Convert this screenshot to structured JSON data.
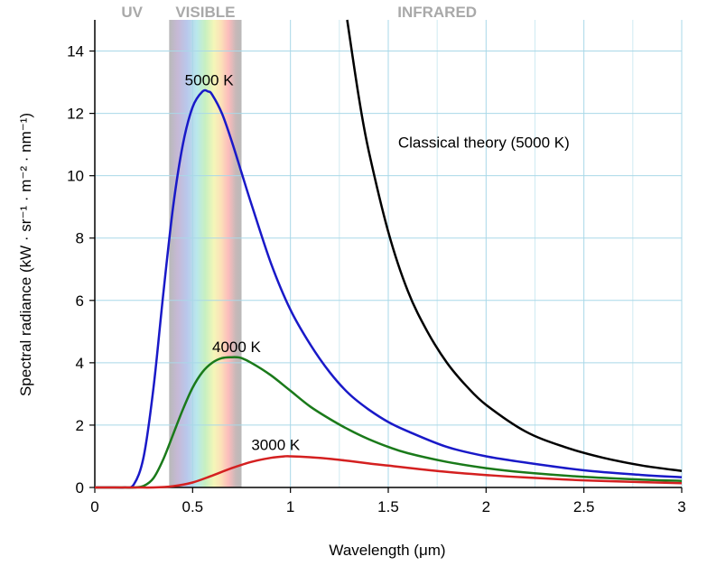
{
  "chart_data": {
    "type": "line",
    "xlabel": "Wavelength (μm)",
    "ylabel": "Spectral radiance (kW · sr⁻¹ · m⁻² · nm⁻¹)",
    "xlim": [
      0,
      3
    ],
    "ylim": [
      0,
      15
    ],
    "x_ticks": [
      "0",
      "0.5",
      "1",
      "1.5",
      "2",
      "2.5",
      "3"
    ],
    "y_ticks": [
      "0",
      "2",
      "4",
      "6",
      "8",
      "10",
      "12",
      "14"
    ],
    "grid": true,
    "regions": [
      {
        "label": "UV",
        "x_range": [
          0,
          0.38
        ]
      },
      {
        "label": "VISIBLE",
        "x_range": [
          0.38,
          0.75
        ]
      },
      {
        "label": "INFRARED",
        "x_range": [
          0.75,
          3
        ]
      }
    ],
    "series": [
      {
        "name": "5000 K",
        "color": "#1919c8",
        "x": [
          0.1,
          0.15,
          0.2,
          0.25,
          0.3,
          0.35,
          0.4,
          0.45,
          0.5,
          0.55,
          0.58,
          0.6,
          0.65,
          0.7,
          0.75,
          0.8,
          0.9,
          1.0,
          1.1,
          1.2,
          1.3,
          1.4,
          1.5,
          1.6,
          1.8,
          2.0,
          2.2,
          2.5,
          2.8,
          3.0
        ],
        "y": [
          0.0,
          0.0,
          0.1,
          1.0,
          3.2,
          6.2,
          9.0,
          11.0,
          12.2,
          12.7,
          12.7,
          12.6,
          12.0,
          11.1,
          10.1,
          9.1,
          7.2,
          5.7,
          4.6,
          3.7,
          3.0,
          2.5,
          2.1,
          1.8,
          1.3,
          1.0,
          0.8,
          0.55,
          0.4,
          0.33
        ]
      },
      {
        "name": "4000 K",
        "color": "#1a7a1a",
        "x": [
          0.15,
          0.2,
          0.25,
          0.3,
          0.35,
          0.4,
          0.45,
          0.5,
          0.55,
          0.6,
          0.65,
          0.7,
          0.725,
          0.75,
          0.8,
          0.9,
          1.0,
          1.1,
          1.2,
          1.3,
          1.4,
          1.5,
          1.6,
          1.8,
          2.0,
          2.2,
          2.5,
          2.8,
          3.0
        ],
        "y": [
          0.0,
          0.0,
          0.05,
          0.3,
          0.9,
          1.7,
          2.5,
          3.2,
          3.7,
          4.0,
          4.15,
          4.18,
          4.18,
          4.15,
          4.0,
          3.6,
          3.1,
          2.6,
          2.2,
          1.85,
          1.55,
          1.3,
          1.1,
          0.82,
          0.62,
          0.48,
          0.34,
          0.25,
          0.21
        ]
      },
      {
        "name": "3000 K",
        "color": "#d42020",
        "x": [
          0.2,
          0.3,
          0.4,
          0.5,
          0.6,
          0.7,
          0.8,
          0.9,
          0.97,
          1.0,
          1.1,
          1.2,
          1.3,
          1.4,
          1.5,
          1.6,
          1.8,
          2.0,
          2.2,
          2.5,
          2.8,
          3.0
        ],
        "y": [
          0.0,
          0.0,
          0.04,
          0.16,
          0.38,
          0.62,
          0.82,
          0.95,
          1.0,
          1.0,
          0.97,
          0.92,
          0.85,
          0.77,
          0.7,
          0.63,
          0.5,
          0.4,
          0.32,
          0.23,
          0.17,
          0.14
        ]
      },
      {
        "name": "Classical theory (5000 K)",
        "color": "#000000",
        "x": [
          1.29,
          1.35,
          1.4,
          1.5,
          1.6,
          1.7,
          1.8,
          1.9,
          2.0,
          2.2,
          2.4,
          2.6,
          2.8,
          3.0
        ],
        "y": [
          15.0,
          12.5,
          10.8,
          8.2,
          6.3,
          5.0,
          4.0,
          3.25,
          2.65,
          1.8,
          1.3,
          0.95,
          0.7,
          0.53
        ]
      }
    ],
    "annotations": [
      {
        "text": "5000 K",
        "x": 0.46,
        "y": 12.9
      },
      {
        "text": "4000 K",
        "x": 0.6,
        "y": 4.35
      },
      {
        "text": "3000 K",
        "x": 0.8,
        "y": 1.2
      },
      {
        "text": "Classical theory (5000 K)",
        "x": 1.55,
        "y": 10.9
      }
    ]
  }
}
